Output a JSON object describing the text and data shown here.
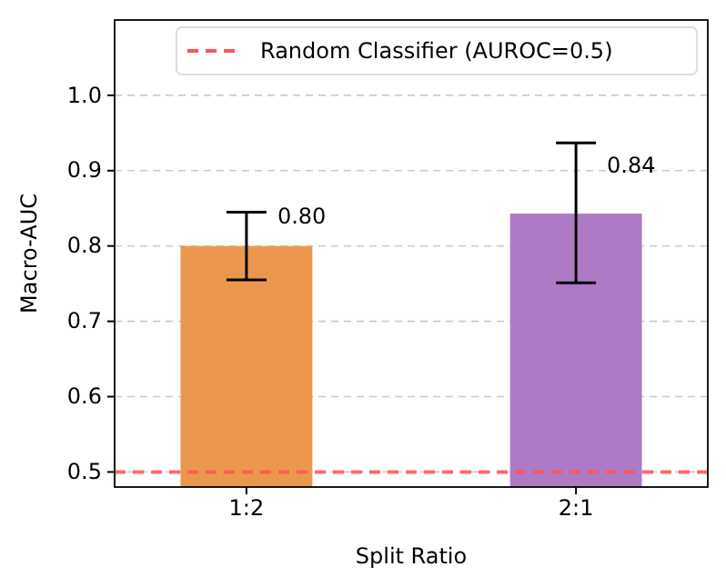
{
  "chart_data": {
    "type": "bar",
    "xlabel": "Split Ratio",
    "ylabel": "Macro-AUC",
    "categories": [
      "1:2",
      "2:1"
    ],
    "values": [
      0.8,
      0.843
    ],
    "colors": [
      "#eb984e",
      "#af7ac5"
    ],
    "errors": [
      [
        0.755,
        0.845
      ],
      [
        0.751,
        0.937
      ]
    ],
    "value_labels": [
      "0.80",
      "0.84"
    ],
    "ylim": [
      0.48,
      1.1
    ],
    "yticks": [
      0.5,
      0.6,
      0.7,
      0.8,
      0.9,
      {
        "value": 1,
        "label": "1.0"
      }
    ],
    "grid": "y",
    "legend": "top right",
    "ref_lines": [
      {
        "axis": "y",
        "value": 0.5,
        "label": "Random Classifier (AUROC=0.5)",
        "color": "#ff5555",
        "line_style": "dashed"
      }
    ]
  }
}
